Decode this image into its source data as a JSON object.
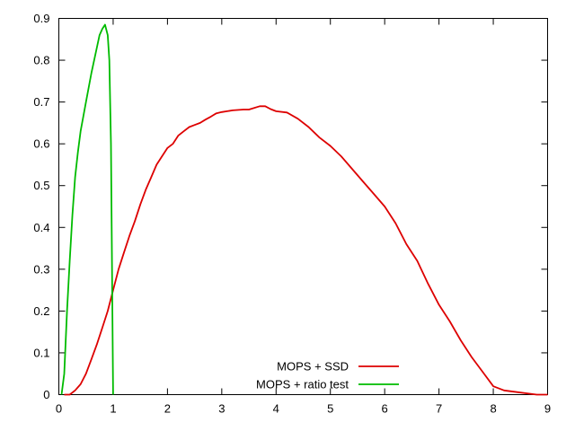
{
  "chart_data": {
    "type": "line",
    "xlim": [
      0,
      9
    ],
    "ylim": [
      0,
      0.9
    ],
    "x_ticks": [
      "0",
      "1",
      "2",
      "3",
      "4",
      "5",
      "6",
      "7",
      "8",
      "9"
    ],
    "y_ticks": [
      "0",
      "0.1",
      "0.2",
      "0.3",
      "0.4",
      "0.5",
      "0.6",
      "0.7",
      "0.8",
      "0.9"
    ],
    "grid": false,
    "legend_position": "bottom-right",
    "series": [
      {
        "name": "MOPS + SSD",
        "color": "#dd0000",
        "points": [
          [
            0.1,
            0.0
          ],
          [
            0.2,
            0.0
          ],
          [
            0.3,
            0.01
          ],
          [
            0.4,
            0.025
          ],
          [
            0.5,
            0.05
          ],
          [
            0.6,
            0.085
          ],
          [
            0.7,
            0.12
          ],
          [
            0.8,
            0.16
          ],
          [
            0.9,
            0.2
          ],
          [
            1.0,
            0.25
          ],
          [
            1.1,
            0.3
          ],
          [
            1.2,
            0.34
          ],
          [
            1.3,
            0.38
          ],
          [
            1.4,
            0.415
          ],
          [
            1.5,
            0.455
          ],
          [
            1.6,
            0.49
          ],
          [
            1.7,
            0.52
          ],
          [
            1.8,
            0.55
          ],
          [
            1.9,
            0.57
          ],
          [
            2.0,
            0.59
          ],
          [
            2.1,
            0.6
          ],
          [
            2.2,
            0.62
          ],
          [
            2.3,
            0.63
          ],
          [
            2.4,
            0.64
          ],
          [
            2.5,
            0.645
          ],
          [
            2.6,
            0.65
          ],
          [
            2.7,
            0.658
          ],
          [
            2.8,
            0.665
          ],
          [
            2.9,
            0.673
          ],
          [
            3.0,
            0.676
          ],
          [
            3.2,
            0.68
          ],
          [
            3.4,
            0.682
          ],
          [
            3.5,
            0.682
          ],
          [
            3.7,
            0.69
          ],
          [
            3.8,
            0.69
          ],
          [
            3.9,
            0.683
          ],
          [
            4.0,
            0.678
          ],
          [
            4.2,
            0.675
          ],
          [
            4.4,
            0.66
          ],
          [
            4.6,
            0.64
          ],
          [
            4.8,
            0.615
          ],
          [
            5.0,
            0.595
          ],
          [
            5.2,
            0.57
          ],
          [
            5.4,
            0.54
          ],
          [
            5.6,
            0.51
          ],
          [
            5.8,
            0.48
          ],
          [
            6.0,
            0.45
          ],
          [
            6.2,
            0.41
          ],
          [
            6.4,
            0.36
          ],
          [
            6.6,
            0.32
          ],
          [
            6.8,
            0.265
          ],
          [
            7.0,
            0.215
          ],
          [
            7.2,
            0.175
          ],
          [
            7.4,
            0.13
          ],
          [
            7.6,
            0.09
          ],
          [
            7.8,
            0.055
          ],
          [
            8.0,
            0.02
          ],
          [
            8.2,
            0.01
          ],
          [
            8.5,
            0.005
          ],
          [
            8.8,
            0.0
          ],
          [
            9.0,
            0.0
          ]
        ]
      },
      {
        "name": "MOPS + ratio test",
        "color": "#00bb00",
        "points": [
          [
            0.05,
            0.0
          ],
          [
            0.1,
            0.05
          ],
          [
            0.15,
            0.2
          ],
          [
            0.2,
            0.32
          ],
          [
            0.25,
            0.43
          ],
          [
            0.3,
            0.52
          ],
          [
            0.35,
            0.58
          ],
          [
            0.4,
            0.63
          ],
          [
            0.5,
            0.7
          ],
          [
            0.6,
            0.77
          ],
          [
            0.7,
            0.83
          ],
          [
            0.75,
            0.86
          ],
          [
            0.8,
            0.875
          ],
          [
            0.85,
            0.885
          ],
          [
            0.9,
            0.86
          ],
          [
            0.93,
            0.8
          ],
          [
            0.96,
            0.6
          ],
          [
            0.98,
            0.3
          ],
          [
            1.0,
            0.0
          ]
        ]
      }
    ]
  }
}
